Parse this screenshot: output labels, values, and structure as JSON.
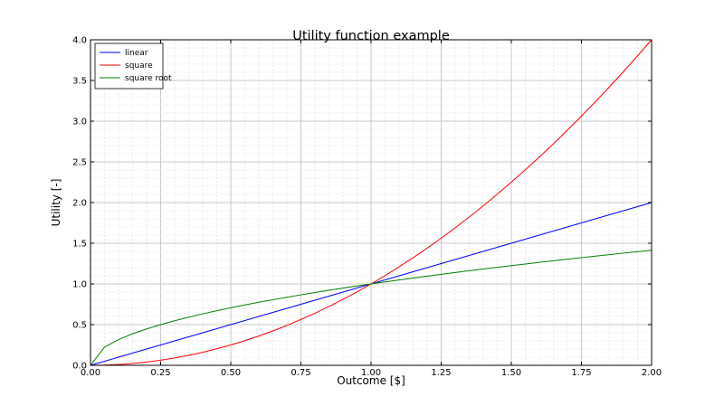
{
  "chart_data": {
    "type": "line",
    "title": "Utility function example",
    "xlabel": "Outcome [$]",
    "ylabel": "Utility [-]",
    "xlim": [
      0,
      2
    ],
    "ylim": [
      0,
      4
    ],
    "grid": true,
    "legend_position": "top-left",
    "x_ticks": [
      0,
      0.25,
      0.5,
      0.75,
      1.0,
      1.25,
      1.5,
      1.75,
      2.0
    ],
    "x_tick_labels": [
      "0.00",
      "0.25",
      "0.50",
      "0.75",
      "1.00",
      "1.25",
      "1.50",
      "1.75",
      "2.00"
    ],
    "y_ticks": [
      0,
      0.5,
      1.0,
      1.5,
      2.0,
      2.5,
      3.0,
      3.5,
      4.0
    ],
    "y_tick_labels": [
      "0.0",
      "0.5",
      "1.0",
      "1.5",
      "2.0",
      "2.5",
      "3.0",
      "3.5",
      "4.0"
    ],
    "x": [
      0,
      0.05,
      0.1,
      0.15,
      0.2,
      0.25,
      0.3,
      0.35,
      0.4,
      0.45,
      0.5,
      0.55,
      0.6,
      0.65,
      0.7,
      0.75,
      0.8,
      0.85,
      0.9,
      0.95,
      1.0,
      1.05,
      1.1,
      1.15,
      1.2,
      1.25,
      1.3,
      1.35,
      1.4,
      1.45,
      1.5,
      1.55,
      1.6,
      1.65,
      1.7,
      1.75,
      1.8,
      1.85,
      1.9,
      1.95,
      2.0
    ],
    "series": [
      {
        "name": "linear",
        "color": "#0000ff",
        "values": [
          0,
          0.05,
          0.1,
          0.15,
          0.2,
          0.25,
          0.3,
          0.35,
          0.4,
          0.45,
          0.5,
          0.55,
          0.6,
          0.65,
          0.7,
          0.75,
          0.8,
          0.85,
          0.9,
          0.95,
          1.0,
          1.05,
          1.1,
          1.15,
          1.2,
          1.25,
          1.3,
          1.35,
          1.4,
          1.45,
          1.5,
          1.55,
          1.6,
          1.65,
          1.7,
          1.75,
          1.8,
          1.85,
          1.9,
          1.95,
          2.0
        ]
      },
      {
        "name": "square",
        "color": "#ff0000",
        "values": [
          0,
          0.0025,
          0.01,
          0.0225,
          0.04,
          0.0625,
          0.09,
          0.1225,
          0.16,
          0.2025,
          0.25,
          0.3025,
          0.36,
          0.4225,
          0.49,
          0.5625,
          0.64,
          0.7225,
          0.81,
          0.9025,
          1.0,
          1.1025,
          1.21,
          1.3225,
          1.44,
          1.5625,
          1.69,
          1.8225,
          1.96,
          2.1025,
          2.25,
          2.4025,
          2.56,
          2.7225,
          2.89,
          3.0625,
          3.24,
          3.4225,
          3.61,
          3.8025,
          4.0
        ]
      },
      {
        "name": "square root",
        "color": "#008000",
        "values": [
          0,
          0.2236,
          0.3162,
          0.3873,
          0.4472,
          0.5,
          0.5477,
          0.5916,
          0.6325,
          0.6708,
          0.7071,
          0.7416,
          0.7746,
          0.8062,
          0.8367,
          0.866,
          0.8944,
          0.922,
          0.9487,
          0.9747,
          1.0,
          1.0247,
          1.0488,
          1.0724,
          1.0954,
          1.118,
          1.1402,
          1.1619,
          1.1832,
          1.2042,
          1.2247,
          1.245,
          1.2649,
          1.2845,
          1.3038,
          1.3229,
          1.3416,
          1.3601,
          1.3784,
          1.3964,
          1.4142
        ]
      }
    ]
  }
}
